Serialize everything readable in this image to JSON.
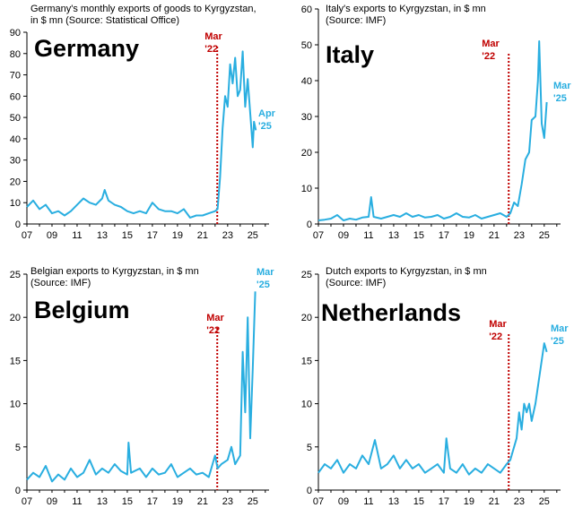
{
  "colors": {
    "series": "#29aee0",
    "marker": "#c00000",
    "axis": "#000000"
  },
  "chart_data": [
    {
      "type": "line",
      "title": "Germany",
      "subtitle_lines": [
        "Germany's monthly exports of goods to Kyrgyzstan,",
        "in $ mn (Source: Statistical Office)"
      ],
      "xlim": [
        2007,
        2026.3
      ],
      "ylim": [
        0,
        90
      ],
      "yticks": [
        0,
        10,
        20,
        30,
        40,
        50,
        60,
        70,
        80,
        90
      ],
      "xtick_labels": [
        "07",
        "09",
        "11",
        "13",
        "15",
        "17",
        "19",
        "21",
        "23",
        "25"
      ],
      "marker": {
        "x": 2022.17,
        "label_lines": [
          "Mar",
          "'22"
        ]
      },
      "end_label_lines": [
        "Apr",
        "'25"
      ],
      "series": [
        {
          "name": "Exports",
          "points": [
            [
              2007.0,
              8
            ],
            [
              2007.5,
              11
            ],
            [
              2008.0,
              7
            ],
            [
              2008.5,
              9
            ],
            [
              2009.0,
              5
            ],
            [
              2009.5,
              6
            ],
            [
              2010.0,
              4
            ],
            [
              2010.5,
              6
            ],
            [
              2011.0,
              9
            ],
            [
              2011.5,
              12
            ],
            [
              2012.0,
              10
            ],
            [
              2012.5,
              9
            ],
            [
              2013.0,
              12
            ],
            [
              2013.2,
              16
            ],
            [
              2013.5,
              11
            ],
            [
              2014.0,
              9
            ],
            [
              2014.5,
              8
            ],
            [
              2015.0,
              6
            ],
            [
              2015.5,
              5
            ],
            [
              2016.0,
              6
            ],
            [
              2016.5,
              5
            ],
            [
              2017.0,
              10
            ],
            [
              2017.5,
              7
            ],
            [
              2018.0,
              6
            ],
            [
              2018.5,
              6
            ],
            [
              2019.0,
              5
            ],
            [
              2019.5,
              7
            ],
            [
              2020.0,
              3
            ],
            [
              2020.5,
              4
            ],
            [
              2021.0,
              4
            ],
            [
              2021.5,
              5
            ],
            [
              2022.0,
              6
            ],
            [
              2022.2,
              7
            ],
            [
              2022.4,
              22
            ],
            [
              2022.6,
              45
            ],
            [
              2022.8,
              60
            ],
            [
              2023.0,
              55
            ],
            [
              2023.2,
              75
            ],
            [
              2023.4,
              66
            ],
            [
              2023.6,
              78
            ],
            [
              2023.8,
              60
            ],
            [
              2024.0,
              63
            ],
            [
              2024.2,
              81
            ],
            [
              2024.4,
              55
            ],
            [
              2024.6,
              68
            ],
            [
              2024.8,
              52
            ],
            [
              2025.0,
              36
            ],
            [
              2025.1,
              48
            ],
            [
              2025.25,
              44
            ]
          ]
        }
      ]
    },
    {
      "type": "line",
      "title": "Italy",
      "subtitle_lines": [
        "Italy's exports to Kyrgyzstan, in $ mn",
        "(Source: IMF)"
      ],
      "xlim": [
        2007,
        2026.3
      ],
      "ylim": [
        0,
        60
      ],
      "yticks": [
        0,
        10,
        20,
        30,
        40,
        50,
        60
      ],
      "xtick_labels": [
        "07",
        "09",
        "11",
        "13",
        "15",
        "17",
        "19",
        "21",
        "23",
        "25"
      ],
      "marker": {
        "x": 2022.17,
        "label_lines": [
          "Mar",
          "'22"
        ]
      },
      "end_label_lines": [
        "Mar",
        "'25"
      ],
      "series": [
        {
          "name": "Exports",
          "points": [
            [
              2007.0,
              1
            ],
            [
              2007.5,
              1.2
            ],
            [
              2008.0,
              1.5
            ],
            [
              2008.5,
              2.5
            ],
            [
              2009.0,
              1
            ],
            [
              2009.5,
              1.5
            ],
            [
              2010.0,
              1.2
            ],
            [
              2010.5,
              1.8
            ],
            [
              2011.0,
              2
            ],
            [
              2011.2,
              7.5
            ],
            [
              2011.4,
              2
            ],
            [
              2012.0,
              1.5
            ],
            [
              2012.5,
              2
            ],
            [
              2013.0,
              2.5
            ],
            [
              2013.5,
              2
            ],
            [
              2014.0,
              3
            ],
            [
              2014.5,
              2
            ],
            [
              2015.0,
              2.5
            ],
            [
              2015.5,
              1.8
            ],
            [
              2016.0,
              2
            ],
            [
              2016.5,
              2.5
            ],
            [
              2017.0,
              1.5
            ],
            [
              2017.5,
              2
            ],
            [
              2018.0,
              3
            ],
            [
              2018.5,
              2
            ],
            [
              2019.0,
              1.8
            ],
            [
              2019.5,
              2.5
            ],
            [
              2020.0,
              1.5
            ],
            [
              2020.5,
              2
            ],
            [
              2021.0,
              2.5
            ],
            [
              2021.5,
              3
            ],
            [
              2022.0,
              2
            ],
            [
              2022.3,
              3
            ],
            [
              2022.6,
              6
            ],
            [
              2022.9,
              5
            ],
            [
              2023.2,
              11
            ],
            [
              2023.5,
              18
            ],
            [
              2023.8,
              20
            ],
            [
              2024.0,
              29
            ],
            [
              2024.3,
              30
            ],
            [
              2024.5,
              40
            ],
            [
              2024.6,
              51
            ],
            [
              2024.8,
              28
            ],
            [
              2025.0,
              24
            ],
            [
              2025.2,
              34
            ]
          ]
        }
      ]
    },
    {
      "type": "line",
      "title": "Belgium",
      "subtitle_lines": [
        "Belgian exports to Kyrgyzstan, in $ mn",
        "(Source: IMF)"
      ],
      "xlim": [
        2007,
        2026.3
      ],
      "ylim": [
        0,
        25
      ],
      "yticks": [
        0,
        5,
        10,
        15,
        20,
        25
      ],
      "xtick_labels": [
        "07",
        "09",
        "11",
        "13",
        "15",
        "17",
        "19",
        "21",
        "23",
        "25"
      ],
      "marker": {
        "x": 2022.17,
        "label_lines": [
          "Mar",
          "'22"
        ]
      },
      "end_label_lines": [
        "Mar",
        "'25"
      ],
      "series": [
        {
          "name": "Exports",
          "points": [
            [
              2007.0,
              1.2
            ],
            [
              2007.5,
              2
            ],
            [
              2008.0,
              1.5
            ],
            [
              2008.5,
              2.8
            ],
            [
              2009.0,
              1
            ],
            [
              2009.5,
              1.8
            ],
            [
              2010.0,
              1.2
            ],
            [
              2010.5,
              2.5
            ],
            [
              2011.0,
              1.5
            ],
            [
              2011.5,
              2
            ],
            [
              2012.0,
              3.5
            ],
            [
              2012.5,
              1.8
            ],
            [
              2013.0,
              2.5
            ],
            [
              2013.5,
              2
            ],
            [
              2014.0,
              3
            ],
            [
              2014.5,
              2.2
            ],
            [
              2015.0,
              1.8
            ],
            [
              2015.1,
              5.5
            ],
            [
              2015.3,
              2
            ],
            [
              2016.0,
              2.5
            ],
            [
              2016.5,
              1.5
            ],
            [
              2017.0,
              2.5
            ],
            [
              2017.5,
              1.8
            ],
            [
              2018.0,
              2
            ],
            [
              2018.5,
              3
            ],
            [
              2019.0,
              1.5
            ],
            [
              2019.5,
              2
            ],
            [
              2020.0,
              2.5
            ],
            [
              2020.5,
              1.8
            ],
            [
              2021.0,
              2
            ],
            [
              2021.5,
              1.5
            ],
            [
              2022.0,
              4
            ],
            [
              2022.2,
              2.5
            ],
            [
              2022.5,
              3
            ],
            [
              2023.0,
              3.5
            ],
            [
              2023.3,
              5
            ],
            [
              2023.6,
              3
            ],
            [
              2024.0,
              4
            ],
            [
              2024.2,
              16
            ],
            [
              2024.4,
              9
            ],
            [
              2024.6,
              20
            ],
            [
              2024.8,
              6
            ],
            [
              2025.0,
              14
            ],
            [
              2025.2,
              23
            ]
          ]
        }
      ]
    },
    {
      "type": "line",
      "title": "Netherlands",
      "subtitle_lines": [
        "Dutch exports to Kyrgyzstan, in $ mn",
        "(Source: IMF)"
      ],
      "xlim": [
        2007,
        2026.3
      ],
      "ylim": [
        0,
        25
      ],
      "yticks": [
        0,
        5,
        10,
        15,
        20,
        25
      ],
      "xtick_labels": [
        "07",
        "09",
        "11",
        "13",
        "15",
        "17",
        "19",
        "21",
        "23",
        "25"
      ],
      "marker": {
        "x": 2022.17,
        "label_lines": [
          "Mar",
          "'22"
        ]
      },
      "end_label_lines": [
        "Mar",
        "'25"
      ],
      "series": [
        {
          "name": "Exports",
          "points": [
            [
              2007.0,
              2
            ],
            [
              2007.5,
              3
            ],
            [
              2008.0,
              2.5
            ],
            [
              2008.5,
              3.5
            ],
            [
              2009.0,
              2
            ],
            [
              2009.5,
              3
            ],
            [
              2010.0,
              2.5
            ],
            [
              2010.5,
              4
            ],
            [
              2011.0,
              3
            ],
            [
              2011.5,
              5.8
            ],
            [
              2012.0,
              2.5
            ],
            [
              2012.5,
              3
            ],
            [
              2013.0,
              4
            ],
            [
              2013.5,
              2.5
            ],
            [
              2014.0,
              3.5
            ],
            [
              2014.5,
              2.5
            ],
            [
              2015.0,
              3
            ],
            [
              2015.5,
              2
            ],
            [
              2016.0,
              2.5
            ],
            [
              2016.5,
              3
            ],
            [
              2017.0,
              2
            ],
            [
              2017.2,
              6
            ],
            [
              2017.5,
              2.5
            ],
            [
              2018.0,
              2
            ],
            [
              2018.5,
              3
            ],
            [
              2019.0,
              1.8
            ],
            [
              2019.5,
              2.5
            ],
            [
              2020.0,
              2
            ],
            [
              2020.5,
              3
            ],
            [
              2021.0,
              2.5
            ],
            [
              2021.5,
              2
            ],
            [
              2022.0,
              3
            ],
            [
              2022.3,
              3.5
            ],
            [
              2022.6,
              5
            ],
            [
              2022.8,
              6
            ],
            [
              2023.0,
              9
            ],
            [
              2023.2,
              7
            ],
            [
              2023.4,
              10
            ],
            [
              2023.6,
              9
            ],
            [
              2023.8,
              10
            ],
            [
              2024.0,
              8
            ],
            [
              2024.3,
              10
            ],
            [
              2024.5,
              12
            ],
            [
              2024.7,
              14
            ],
            [
              2025.0,
              17
            ],
            [
              2025.2,
              16
            ]
          ]
        }
      ]
    }
  ]
}
